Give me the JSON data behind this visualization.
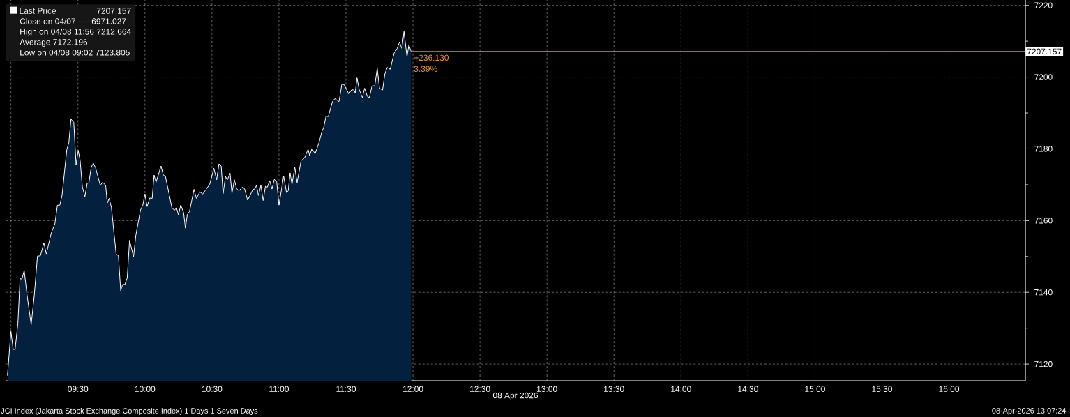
{
  "chart_data": {
    "type": "area",
    "title": "JCI Index (Jakarta Stock Exchange Composite Index) 1 Days 1 Seven Days",
    "xlabel": "08 Apr 2026",
    "x": [
      8.974,
      9.0,
      9.017,
      9.031,
      9.052,
      9.068,
      9.082,
      9.099,
      9.121,
      9.151,
      9.174,
      9.198,
      9.22,
      9.246,
      9.264,
      9.302,
      9.328,
      9.347,
      9.365,
      9.382,
      9.417,
      9.432,
      9.448,
      9.469,
      9.486,
      9.502,
      9.516,
      9.533,
      9.552,
      9.569,
      9.582,
      9.599,
      9.615,
      9.632,
      9.667,
      9.684,
      9.707,
      9.719,
      9.733,
      9.75,
      9.785,
      9.802,
      9.819,
      9.833,
      9.851,
      9.868,
      9.885,
      9.915,
      9.932,
      9.967,
      9.984,
      10.0,
      10.016,
      10.036,
      10.054,
      10.068,
      10.083,
      10.12,
      10.137,
      10.153,
      10.201,
      10.219,
      10.236,
      10.25,
      10.267,
      10.288,
      10.302,
      10.316,
      10.332,
      10.366,
      10.384,
      10.41,
      10.431,
      10.483,
      10.514,
      10.535,
      10.552,
      10.569,
      10.583,
      10.601,
      10.615,
      10.635,
      10.649,
      10.667,
      10.684,
      10.702,
      10.726,
      10.743,
      10.766,
      10.806,
      10.818,
      10.832,
      10.847,
      10.865,
      10.882,
      10.899,
      10.913,
      10.931,
      10.948,
      10.965,
      10.983,
      11.0,
      11.035,
      11.056,
      11.069,
      11.083,
      11.097,
      11.118,
      11.135,
      11.165,
      11.191,
      11.217,
      11.229,
      11.246,
      11.269,
      11.299,
      11.321,
      11.333,
      11.351,
      11.368,
      11.399,
      11.417,
      11.448,
      11.469,
      11.486,
      11.521,
      11.542,
      11.559,
      11.569,
      11.582,
      11.599,
      11.622,
      11.639,
      11.66,
      11.674,
      11.694,
      11.715,
      11.733,
      11.75,
      11.773,
      11.79,
      11.807,
      11.83,
      11.859,
      11.882,
      11.899,
      11.917,
      11.933,
      11.955,
      11.969,
      11.986
    ],
    "series": [
      {
        "name": "Last Price",
        "color": "#04203f",
        "values": [
          7116.8,
          7129.1,
          7124.1,
          7124.1,
          7131.4,
          7143.8,
          7143.7,
          7146.1,
          7139.1,
          7131.0,
          7139.1,
          7150.1,
          7150.2,
          7153.8,
          7150.7,
          7156.7,
          7159.1,
          7164.3,
          7164.3,
          7167.2,
          7179.8,
          7181.7,
          7188.3,
          7187.4,
          7175.6,
          7179.6,
          7176.9,
          7169.4,
          7166.7,
          7170.4,
          7170.6,
          7174.9,
          7176.0,
          7174.7,
          7169.8,
          7170.7,
          7169.8,
          7164.9,
          7166.2,
          7163.6,
          7150.7,
          7150.2,
          7140.5,
          7142.2,
          7142.2,
          7144.1,
          7154.5,
          7149.9,
          7155.9,
          7163.0,
          7164.3,
          7167.4,
          7163.9,
          7166.3,
          7166.2,
          7172.7,
          7170.7,
          7175.2,
          7172.7,
          7172.3,
          7163.6,
          7162.9,
          7163.5,
          7161.6,
          7164.3,
          7162.3,
          7157.9,
          7161.7,
          7162.5,
          7168.7,
          7166.2,
          7168.0,
          7167.4,
          7170.1,
          7174.6,
          7171.4,
          7175.8,
          7175.2,
          7167.5,
          7172.3,
          7171.4,
          7173.2,
          7167.6,
          7171.4,
          7168.9,
          7168.3,
          7169.3,
          7168.9,
          7165.7,
          7168.7,
          7168.8,
          7169.8,
          7167.0,
          7169.8,
          7165.6,
          7169.6,
          7169.3,
          7171.1,
          7168.8,
          7171.5,
          7170.9,
          7164.3,
          7172.5,
          7167.8,
          7168.3,
          7173.3,
          7170.1,
          7174.9,
          7170.6,
          7176.7,
          7177.5,
          7179.9,
          7178.1,
          7180.1,
          7178.6,
          7181.8,
          7184.9,
          7185.9,
          7189.1,
          7189.0,
          7193.2,
          7194.0,
          7193.2,
          7198.0,
          7197.9,
          7195.3,
          7196.5,
          7196.4,
          7195.6,
          7199.8,
          7196.5,
          7194.3,
          7196.9,
          7194.6,
          7194.3,
          7197.5,
          7197.6,
          7202.5,
          7196.9,
          7196.4,
          7200.9,
          7202.7,
          7202.2,
          7206.7,
          7208.0,
          7209.8,
          7208.0,
          7212.7,
          7205.7,
          7208.9,
          7207.157
        ]
      }
    ],
    "xlim": [
      8.96,
      16.57
    ],
    "ylim": [
      7115.35,
      7221.5
    ],
    "xticks": [
      {
        "value": 9.0,
        "label": null
      },
      {
        "value": 9.5,
        "label": "09:30"
      },
      {
        "value": 10.0,
        "label": "10:00"
      },
      {
        "value": 10.5,
        "label": "10:30"
      },
      {
        "value": 11.0,
        "label": "11:00"
      },
      {
        "value": 11.5,
        "label": "11:30"
      },
      {
        "value": 12.0,
        "label": "12:00"
      },
      {
        "value": 12.5,
        "label": "12:30"
      },
      {
        "value": 13.0,
        "label": "13:00"
      },
      {
        "value": 13.5,
        "label": "13:30"
      },
      {
        "value": 14.0,
        "label": "14:00"
      },
      {
        "value": 14.5,
        "label": "14:30"
      },
      {
        "value": 15.0,
        "label": "15:00"
      },
      {
        "value": 15.5,
        "label": "15:30"
      },
      {
        "value": 16.0,
        "label": "16:00"
      }
    ],
    "yticks": [
      7120,
      {
        "value": 7130,
        "label": null
      },
      7140,
      {
        "value": 7150,
        "label": null
      },
      7160,
      {
        "value": 7170,
        "label": null
      },
      7180,
      {
        "value": 7190,
        "label": null
      },
      7200,
      {
        "value": 7210,
        "label": null
      },
      7220
    ],
    "grid": true,
    "legend": "top left",
    "ref_lines": [
      {
        "axis": "y",
        "value": 7207.157,
        "label": "7207.157",
        "color": "#e8912d"
      }
    ],
    "annotations": [
      "7207.157",
      "Close on 04/07 ---- 6971.027",
      "High on 04/08 11:56 7212.664",
      "Average 7172.196",
      "Low on 04/08 09:02 7123.805",
      {
        "text": "+236.130",
        "x": 12.0,
        "y": 7205.4
      },
      {
        "text": "3.39%",
        "x": 12.0,
        "y": 7202.3
      },
      "08-Apr-2026 13:07:24"
    ]
  }
}
